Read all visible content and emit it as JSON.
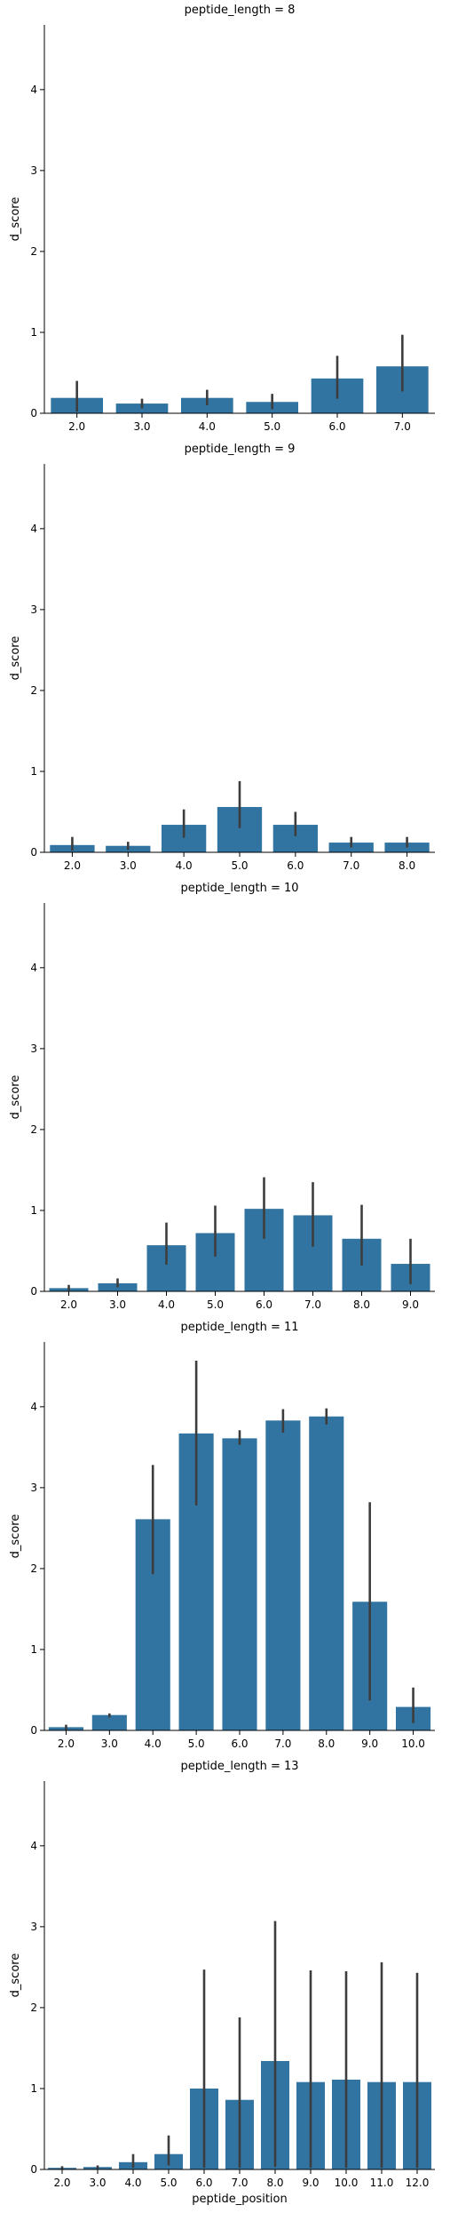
{
  "chart_data": [
    {
      "type": "bar",
      "title": "peptide_length = 8",
      "xlabel": "",
      "ylabel": "d_score",
      "ylim": [
        0,
        4.8
      ],
      "yticks": [
        "0",
        "1",
        "2",
        "3",
        "4"
      ],
      "categories": [
        "2.0",
        "3.0",
        "4.0",
        "5.0",
        "6.0",
        "7.0"
      ],
      "values": [
        0.19,
        0.12,
        0.19,
        0.14,
        0.43,
        0.58
      ],
      "error_low": [
        0.02,
        0.06,
        0.1,
        0.05,
        0.18,
        0.27
      ],
      "error_high": [
        0.4,
        0.18,
        0.29,
        0.24,
        0.71,
        0.97
      ],
      "color": "#3274a1",
      "grid": false
    },
    {
      "type": "bar",
      "title": "peptide_length = 9",
      "xlabel": "",
      "ylabel": "d_score",
      "ylim": [
        0,
        4.8
      ],
      "yticks": [
        "0",
        "1",
        "2",
        "3",
        "4"
      ],
      "categories": [
        "2.0",
        "3.0",
        "4.0",
        "5.0",
        "6.0",
        "7.0",
        "8.0"
      ],
      "values": [
        0.09,
        0.08,
        0.34,
        0.56,
        0.34,
        0.12,
        0.12
      ],
      "error_low": [
        0.02,
        0.03,
        0.18,
        0.3,
        0.2,
        0.06,
        0.06
      ],
      "error_high": [
        0.19,
        0.13,
        0.53,
        0.88,
        0.5,
        0.19,
        0.19
      ],
      "color": "#3274a1",
      "grid": false
    },
    {
      "type": "bar",
      "title": "peptide_length = 10",
      "xlabel": "",
      "ylabel": "d_score",
      "ylim": [
        0,
        4.8
      ],
      "yticks": [
        "0",
        "1",
        "2",
        "3",
        "4"
      ],
      "categories": [
        "2.0",
        "3.0",
        "4.0",
        "5.0",
        "6.0",
        "7.0",
        "8.0",
        "9.0"
      ],
      "values": [
        0.04,
        0.1,
        0.57,
        0.72,
        1.02,
        0.94,
        0.65,
        0.34
      ],
      "error_low": [
        0.01,
        0.05,
        0.33,
        0.43,
        0.65,
        0.55,
        0.32,
        0.09
      ],
      "error_high": [
        0.08,
        0.16,
        0.85,
        1.06,
        1.41,
        1.35,
        1.07,
        0.65
      ],
      "color": "#3274a1",
      "grid": false
    },
    {
      "type": "bar",
      "title": "peptide_length = 11",
      "xlabel": "",
      "ylabel": "d_score",
      "ylim": [
        0,
        4.8
      ],
      "yticks": [
        "0",
        "1",
        "2",
        "3",
        "4"
      ],
      "categories": [
        "2.0",
        "3.0",
        "4.0",
        "5.0",
        "6.0",
        "7.0",
        "8.0",
        "9.0",
        "10.0"
      ],
      "values": [
        0.04,
        0.19,
        2.61,
        3.67,
        3.61,
        3.83,
        3.88,
        1.59,
        0.29
      ],
      "error_low": [
        0.01,
        0.16,
        1.93,
        2.78,
        3.53,
        3.68,
        3.78,
        0.37,
        0.09
      ],
      "error_high": [
        0.07,
        0.21,
        3.28,
        4.57,
        3.71,
        3.97,
        3.98,
        2.82,
        0.53
      ],
      "color": "#3274a1",
      "grid": false
    },
    {
      "type": "bar",
      "title": "peptide_length = 13",
      "xlabel": "peptide_position",
      "ylabel": "d_score",
      "ylim": [
        0,
        4.8
      ],
      "yticks": [
        "0",
        "1",
        "2",
        "3",
        "4"
      ],
      "categories": [
        "2.0",
        "3.0",
        "4.0",
        "5.0",
        "6.0",
        "7.0",
        "8.0",
        "9.0",
        "10.0",
        "11.0",
        "12.0"
      ],
      "values": [
        0.02,
        0.03,
        0.09,
        0.19,
        1.0,
        0.86,
        1.34,
        1.08,
        1.11,
        1.08,
        1.08
      ],
      "error_low": [
        0.0,
        0.01,
        0.02,
        0.05,
        0.02,
        0.02,
        0.03,
        0.02,
        0.02,
        0.02,
        0.02
      ],
      "error_high": [
        0.04,
        0.05,
        0.19,
        0.42,
        2.47,
        1.88,
        3.07,
        2.46,
        2.45,
        2.56,
        2.43
      ],
      "color": "#3274a1",
      "grid": false
    }
  ]
}
